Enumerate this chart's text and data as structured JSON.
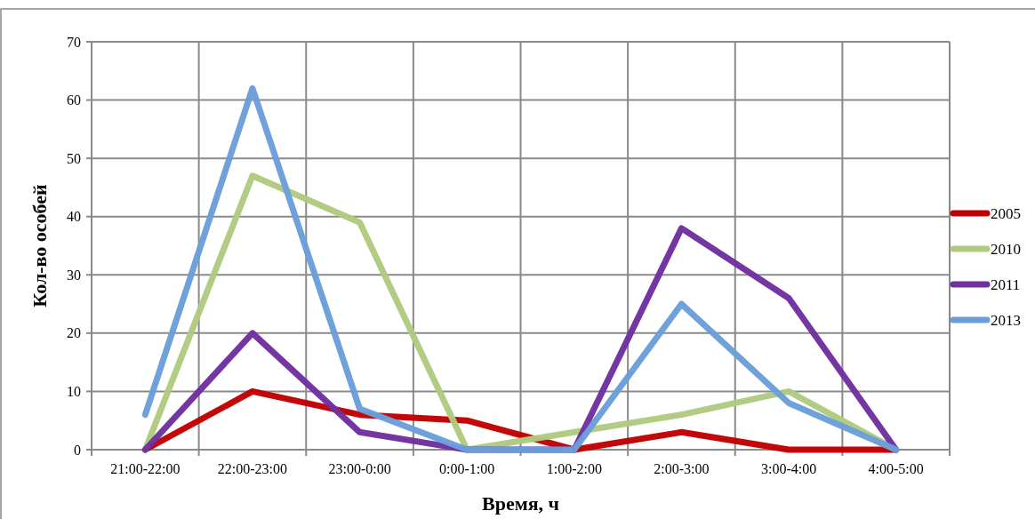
{
  "chart_data": {
    "type": "line",
    "xlabel": "Время, ч",
    "ylabel": "Кол-во особей",
    "categories": [
      "21:00-22:00",
      "22:00-23:00",
      "23:00-0:00",
      "0:00-1:00",
      "1:00-2:00",
      "2:00-3:00",
      "3:00-4:00",
      "4:00-5:00"
    ],
    "series": [
      {
        "name": "2005",
        "color": "#c00000",
        "values": [
          0,
          10,
          6,
          5,
          0,
          3,
          0,
          0
        ]
      },
      {
        "name": "2010",
        "color": "#b0cb7f",
        "values": [
          0,
          47,
          39,
          0,
          3,
          6,
          10,
          0
        ]
      },
      {
        "name": "2011",
        "color": "#7030a0",
        "values": [
          0,
          20,
          3,
          0,
          0,
          38,
          26,
          0
        ]
      },
      {
        "name": "2013",
        "color": "#6a9fda",
        "values": [
          6,
          62,
          7,
          0,
          0,
          25,
          8,
          0
        ]
      }
    ],
    "ylim": [
      0,
      70
    ],
    "yticks": [
      0,
      10,
      20,
      30,
      40,
      50,
      60,
      70
    ],
    "grid": true,
    "legend": "right",
    "marker": "none",
    "line_style": "solid"
  }
}
